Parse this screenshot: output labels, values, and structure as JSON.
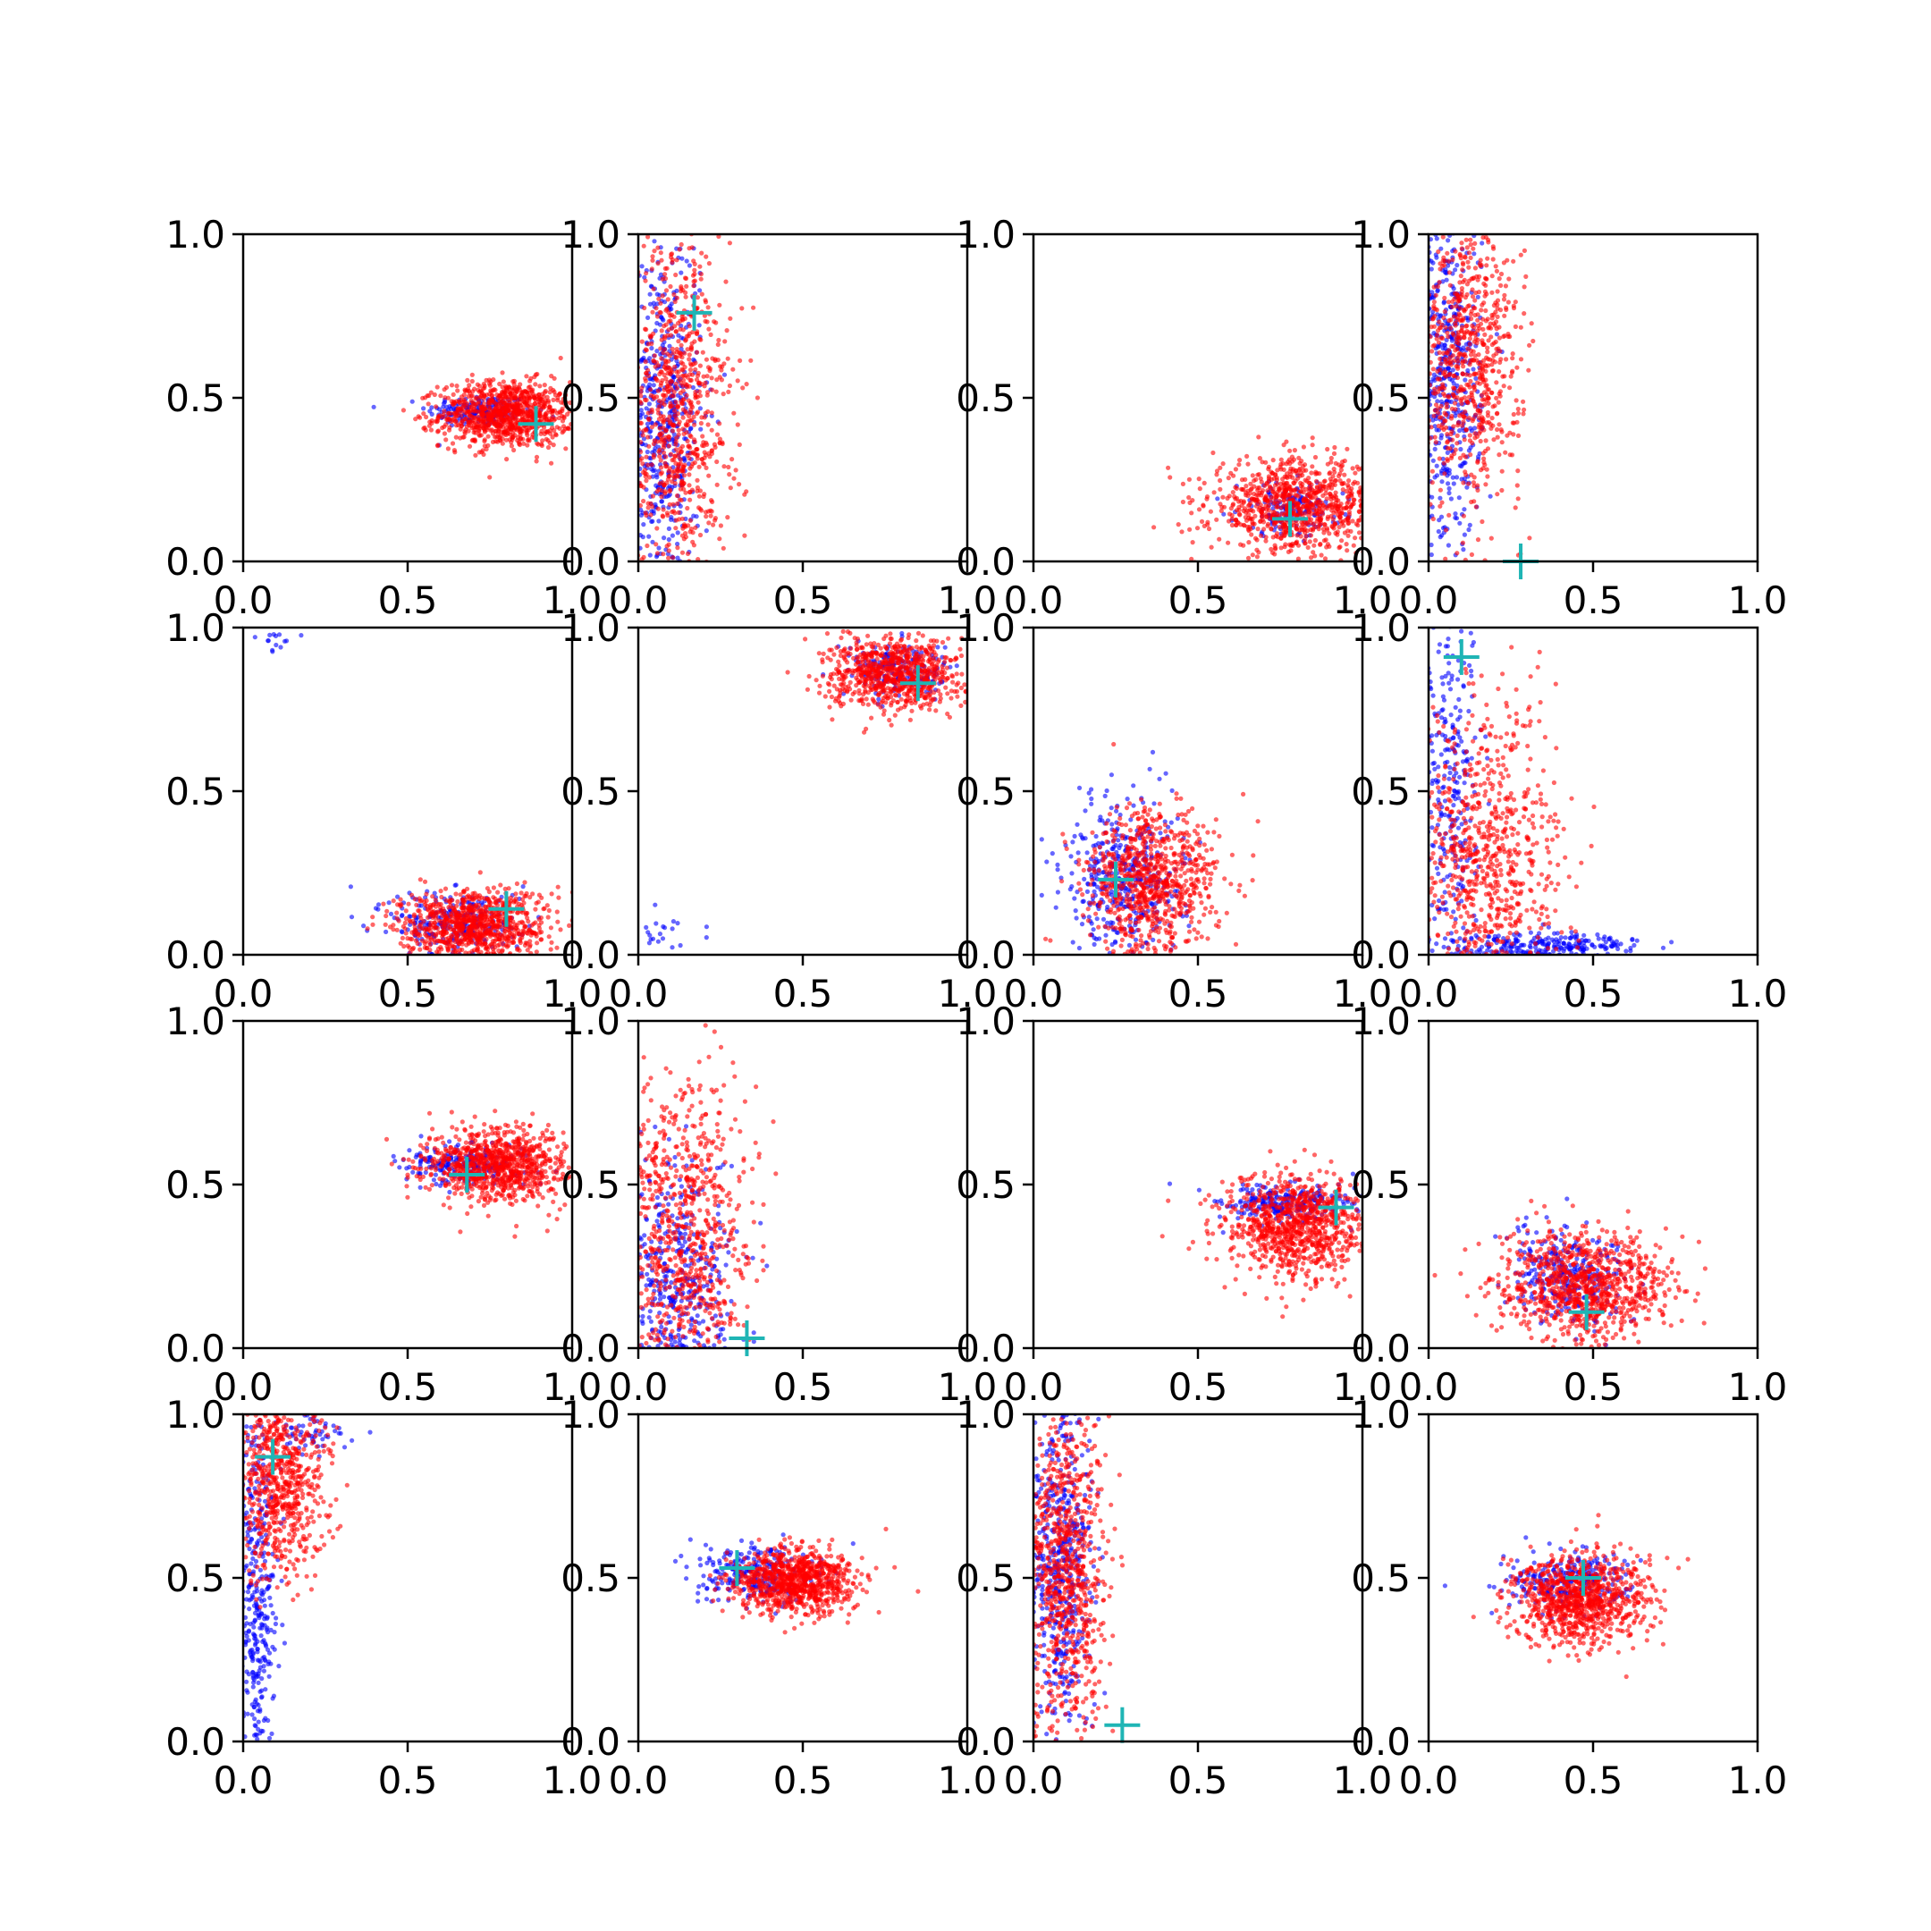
{
  "chart_data": {
    "type": "scatter",
    "grid": false,
    "rows": 4,
    "cols": 4,
    "xlim": [
      0.0,
      1.0
    ],
    "ylim": [
      0.0,
      1.0
    ],
    "tick_values": [
      0.0,
      0.5,
      1.0
    ],
    "tick_labels": [
      "0.0",
      "0.5",
      "1.0"
    ],
    "series_colors": {
      "blue": "#0000ff",
      "red": "#ff0000",
      "marker": "#1fb5b5"
    },
    "marker_symbol": "+",
    "panels": [
      {
        "row": 0,
        "col": 0,
        "blue": [
          {
            "cx": 0.72,
            "cy": 0.46,
            "sx": 0.08,
            "sy": 0.025,
            "n": 180
          }
        ],
        "red": [
          {
            "cx": 0.8,
            "cy": 0.45,
            "sx": 0.1,
            "sy": 0.05,
            "n": 950
          }
        ],
        "marker": [
          0.89,
          0.42
        ]
      },
      {
        "row": 0,
        "col": 1,
        "blue": [
          {
            "cx": 0.07,
            "cy": 0.45,
            "sx": 0.06,
            "sy": 0.28,
            "n": 550
          }
        ],
        "red": [
          {
            "cx": 0.12,
            "cy": 0.45,
            "sx": 0.08,
            "sy": 0.28,
            "n": 850
          }
        ],
        "marker": [
          0.17,
          0.76
        ]
      },
      {
        "row": 0,
        "col": 2,
        "blue": [
          {
            "cx": 0.78,
            "cy": 0.16,
            "sx": 0.08,
            "sy": 0.04,
            "n": 150
          }
        ],
        "red": [
          {
            "cx": 0.8,
            "cy": 0.17,
            "sx": 0.13,
            "sy": 0.07,
            "n": 900
          }
        ],
        "marker": [
          0.78,
          0.13
        ]
      },
      {
        "row": 0,
        "col": 3,
        "blue": [
          {
            "cx": 0.06,
            "cy": 0.55,
            "sx": 0.05,
            "sy": 0.26,
            "n": 500
          }
        ],
        "red": [
          {
            "cx": 0.12,
            "cy": 0.62,
            "sx": 0.08,
            "sy": 0.22,
            "n": 750
          }
        ],
        "marker": [
          0.28,
          0.0
        ]
      },
      {
        "row": 1,
        "col": 0,
        "blue": [
          {
            "cx": 0.65,
            "cy": 0.1,
            "sx": 0.1,
            "sy": 0.05,
            "n": 250
          },
          {
            "cx": 0.1,
            "cy": 0.96,
            "sx": 0.05,
            "sy": 0.02,
            "n": 14
          }
        ],
        "red": [
          {
            "cx": 0.7,
            "cy": 0.09,
            "sx": 0.11,
            "sy": 0.055,
            "n": 900
          }
        ],
        "marker": [
          0.8,
          0.14
        ]
      },
      {
        "row": 1,
        "col": 1,
        "blue": [
          {
            "cx": 0.8,
            "cy": 0.87,
            "sx": 0.08,
            "sy": 0.04,
            "n": 200
          },
          {
            "cx": 0.08,
            "cy": 0.06,
            "sx": 0.04,
            "sy": 0.05,
            "n": 22
          }
        ],
        "red": [
          {
            "cx": 0.78,
            "cy": 0.86,
            "sx": 0.1,
            "sy": 0.055,
            "n": 800
          }
        ],
        "marker": [
          0.85,
          0.83
        ]
      },
      {
        "row": 1,
        "col": 2,
        "blue": [
          {
            "cx": 0.28,
            "cy": 0.24,
            "sx": 0.09,
            "sy": 0.12,
            "n": 420
          }
        ],
        "red": [
          {
            "cx": 0.36,
            "cy": 0.22,
            "sx": 0.1,
            "sy": 0.11,
            "n": 800
          }
        ],
        "marker": [
          0.25,
          0.23
        ]
      },
      {
        "row": 1,
        "col": 3,
        "blue": [
          {
            "cx": 0.07,
            "cy": 0.45,
            "sx": 0.05,
            "sy": 0.3,
            "n": 300
          },
          {
            "cx": 0.35,
            "cy": 0.03,
            "sx": 0.14,
            "sy": 0.02,
            "n": 260
          }
        ],
        "red": [
          {
            "cx": 0.18,
            "cy": 0.28,
            "sx": 0.11,
            "sy": 0.25,
            "n": 800
          }
        ],
        "marker": [
          0.1,
          0.91
        ]
      },
      {
        "row": 2,
        "col": 0,
        "blue": [
          {
            "cx": 0.68,
            "cy": 0.56,
            "sx": 0.09,
            "sy": 0.03,
            "n": 220
          }
        ],
        "red": [
          {
            "cx": 0.78,
            "cy": 0.56,
            "sx": 0.11,
            "sy": 0.055,
            "n": 900
          }
        ],
        "marker": [
          0.68,
          0.53
        ]
      },
      {
        "row": 2,
        "col": 1,
        "blue": [
          {
            "cx": 0.12,
            "cy": 0.18,
            "sx": 0.09,
            "sy": 0.18,
            "n": 450
          }
        ],
        "red": [
          {
            "cx": 0.14,
            "cy": 0.32,
            "sx": 0.1,
            "sy": 0.27,
            "n": 850
          }
        ],
        "marker": [
          0.33,
          0.03
        ]
      },
      {
        "row": 2,
        "col": 2,
        "blue": [
          {
            "cx": 0.76,
            "cy": 0.44,
            "sx": 0.1,
            "sy": 0.03,
            "n": 240
          }
        ],
        "red": [
          {
            "cx": 0.8,
            "cy": 0.37,
            "sx": 0.11,
            "sy": 0.08,
            "n": 900
          }
        ],
        "marker": [
          0.92,
          0.43
        ]
      },
      {
        "row": 2,
        "col": 3,
        "blue": [
          {
            "cx": 0.42,
            "cy": 0.22,
            "sx": 0.09,
            "sy": 0.07,
            "n": 300
          }
        ],
        "red": [
          {
            "cx": 0.48,
            "cy": 0.19,
            "sx": 0.13,
            "sy": 0.08,
            "n": 900
          }
        ],
        "marker": [
          0.48,
          0.11
        ]
      },
      {
        "row": 3,
        "col": 0,
        "blue": [
          {
            "cx": 0.04,
            "cy": 0.4,
            "sx": 0.03,
            "sy": 0.3,
            "n": 380
          },
          {
            "cx": 0.2,
            "cy": 0.95,
            "sx": 0.07,
            "sy": 0.03,
            "n": 60
          }
        ],
        "red": [
          {
            "cx": 0.12,
            "cy": 0.8,
            "sx": 0.07,
            "sy": 0.15,
            "n": 700
          }
        ],
        "marker": [
          0.09,
          0.87
        ]
      },
      {
        "row": 3,
        "col": 1,
        "blue": [
          {
            "cx": 0.35,
            "cy": 0.51,
            "sx": 0.09,
            "sy": 0.04,
            "n": 260
          }
        ],
        "red": [
          {
            "cx": 0.47,
            "cy": 0.49,
            "sx": 0.09,
            "sy": 0.05,
            "n": 900
          }
        ],
        "marker": [
          0.3,
          0.53
        ]
      },
      {
        "row": 3,
        "col": 2,
        "blue": [
          {
            "cx": 0.08,
            "cy": 0.55,
            "sx": 0.05,
            "sy": 0.26,
            "n": 520
          }
        ],
        "red": [
          {
            "cx": 0.1,
            "cy": 0.5,
            "sx": 0.06,
            "sy": 0.26,
            "n": 800
          }
        ],
        "marker": [
          0.27,
          0.05
        ]
      },
      {
        "row": 3,
        "col": 3,
        "blue": [
          {
            "cx": 0.42,
            "cy": 0.49,
            "sx": 0.09,
            "sy": 0.045,
            "n": 260
          }
        ],
        "red": [
          {
            "cx": 0.46,
            "cy": 0.43,
            "sx": 0.1,
            "sy": 0.07,
            "n": 900
          }
        ],
        "marker": [
          0.47,
          0.5
        ]
      }
    ]
  }
}
